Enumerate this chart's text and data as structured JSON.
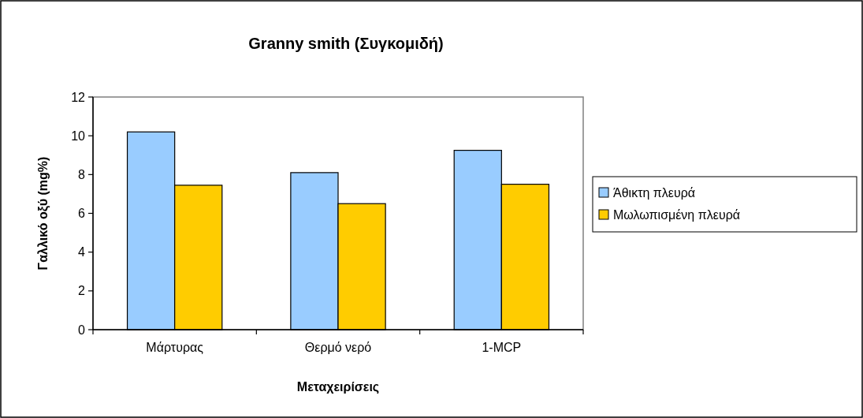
{
  "chart_data": {
    "type": "bar",
    "title": "Granny smith (Συγκομιδή)",
    "xlabel": "Μεταχειρίσεις",
    "ylabel": "Γαλλικό οξύ (mg%)",
    "categories": [
      "Μάρτυρας",
      "Θερμό νερό",
      "1-MCP"
    ],
    "series": [
      {
        "name": "Άθικτη πλευρά",
        "color": "#99ccff",
        "values": [
          10.2,
          8.1,
          9.25
        ]
      },
      {
        "name": "Μωλωπισμένη πλευρά",
        "color": "#ffcc00",
        "values": [
          7.45,
          6.5,
          7.5
        ]
      }
    ],
    "ylim": [
      0,
      12
    ],
    "yticks": [
      0,
      2,
      4,
      6,
      8,
      10,
      12
    ],
    "grid": false,
    "legend": "right"
  }
}
